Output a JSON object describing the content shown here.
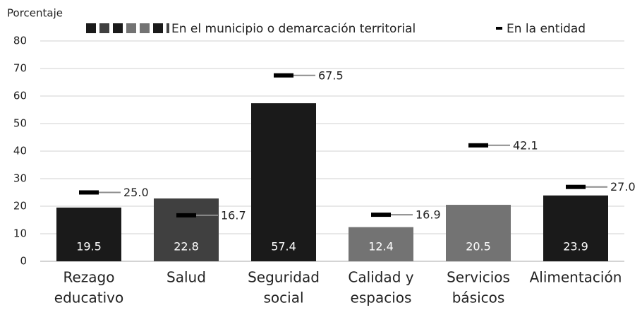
{
  "chart_data": {
    "type": "bar",
    "y_label": "Porcentaje",
    "categories": [
      [
        "Rezago",
        "educativo"
      ],
      [
        "Salud"
      ],
      [
        "Seguridad",
        "social"
      ],
      [
        "Calidad y",
        "espacios"
      ],
      [
        "Servicios",
        "básicos"
      ],
      [
        "Alimentación"
      ]
    ],
    "series": [
      {
        "name": "En el municipio o demarcación territorial",
        "colors": [
          "#1a1a1a",
          "#404040",
          "#1a1a1a",
          "#737373",
          "#737373",
          "#1a1a1a"
        ],
        "values": [
          19.5,
          22.8,
          57.4,
          12.4,
          20.5,
          23.9
        ]
      },
      {
        "name": "En la entidad",
        "color": "#000000",
        "line_color": "#8c8c8c",
        "values": [
          25,
          16.7,
          67.5,
          16.9,
          42.1,
          27
        ],
        "value_labels": [
          "25.0",
          "16.7",
          "67.5",
          "16.9",
          "42.1",
          "27.0"
        ]
      }
    ],
    "ylim": [
      0,
      80
    ],
    "yticks": [
      0,
      10,
      20,
      30,
      40,
      50,
      60,
      70,
      80
    ],
    "grid": true
  }
}
